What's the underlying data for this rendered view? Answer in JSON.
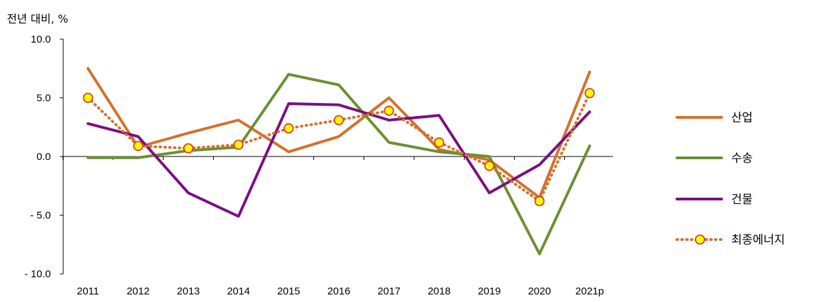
{
  "chart_data": {
    "type": "line",
    "unit_label": "전년 대비, %",
    "categories": [
      "2011",
      "2012",
      "2013",
      "2014",
      "2015",
      "2016",
      "2017",
      "2018",
      "2019",
      "2020",
      "2021p"
    ],
    "ylim": [
      -10.0,
      10.0
    ],
    "yticks": [
      "10.0",
      "5.0",
      "0.0",
      "- 5.0",
      "- 10.0"
    ],
    "ytick_values": [
      10,
      5,
      0,
      -5,
      -10
    ],
    "grid": false,
    "legend_position": "right",
    "series": [
      {
        "name": "산업",
        "color": "#D2722C",
        "style": "solid",
        "values": [
          7.5,
          0.8,
          2.0,
          3.1,
          0.4,
          1.7,
          5.0,
          0.6,
          -0.3,
          -3.5,
          7.2
        ]
      },
      {
        "name": "수송",
        "color": "#6B9030",
        "style": "solid",
        "values": [
          -0.1,
          -0.1,
          0.5,
          0.8,
          7.0,
          6.1,
          1.2,
          0.4,
          0.0,
          -8.3,
          0.9
        ]
      },
      {
        "name": "건물",
        "color": "#7B0E85",
        "style": "solid",
        "values": [
          2.8,
          1.7,
          -3.1,
          -5.1,
          4.5,
          4.4,
          3.1,
          3.5,
          -3.1,
          -0.7,
          3.8
        ]
      },
      {
        "name": "최종에너지",
        "color": "#D2722C",
        "style": "dotted",
        "marker_fill": "#FFFF00",
        "marker_stroke": "#E2372B",
        "values": [
          5.0,
          0.9,
          0.7,
          1.0,
          2.4,
          3.1,
          3.9,
          1.2,
          -0.8,
          -3.8,
          5.4
        ]
      }
    ]
  }
}
